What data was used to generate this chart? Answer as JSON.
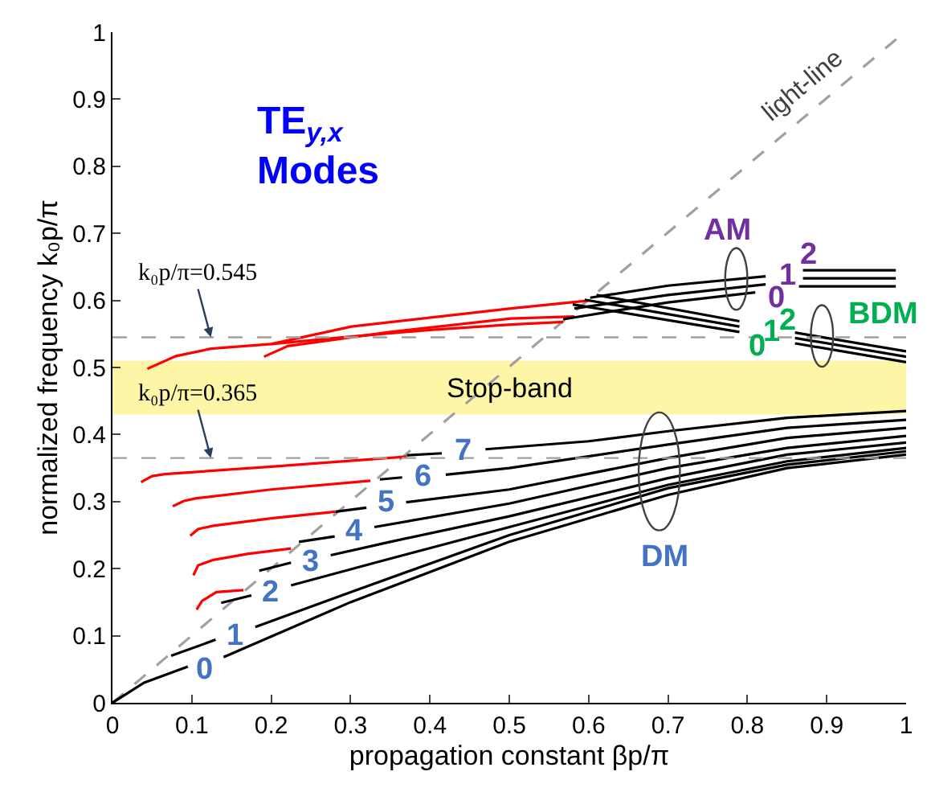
{
  "chart_data": {
    "type": "line",
    "title": "TE$_{y,x}$\nModes",
    "xlabel": "propagation constant βp/π",
    "ylabel": "normalized frequency k₀p/π",
    "xlim": [
      0,
      1
    ],
    "ylim": [
      0,
      1
    ],
    "xticks": [
      0,
      0.1,
      0.2,
      0.3,
      0.4,
      0.5,
      0.6,
      0.7,
      0.8,
      0.9,
      1
    ],
    "yticks": [
      0,
      0.1,
      0.2,
      0.3,
      0.4,
      0.5,
      0.6,
      0.7,
      0.8,
      0.9,
      1
    ],
    "grid": false,
    "marker": "none",
    "series": [
      {
        "color": "#a0a0a0",
        "line_style": "dashed",
        "x": [
          0,
          0.998
        ],
        "values": [
          0,
          1
        ]
      },
      {
        "color": "#000000",
        "x": [
          0,
          0.04,
          0.095,
          null,
          0.14,
          0.3,
          0.5,
          0.7,
          0.85,
          1
        ],
        "values": [
          0,
          0.03,
          0.054,
          null,
          0.068,
          0.15,
          0.24,
          0.31,
          0.35,
          0.37
        ]
      },
      {
        "color": "#000000",
        "x": [
          0.074,
          0.13,
          null,
          0.18,
          0.3,
          0.5,
          0.7,
          0.85,
          1
        ],
        "values": [
          0.07,
          0.094,
          null,
          0.113,
          0.165,
          0.25,
          0.32,
          0.355,
          0.375
        ]
      },
      {
        "color": "#000000",
        "x": [
          0.137,
          0.175,
          null,
          0.225,
          0.35,
          0.5,
          0.7,
          0.85,
          1
        ],
        "values": [
          0.149,
          0.16,
          null,
          0.175,
          0.215,
          0.262,
          0.325,
          0.36,
          0.38
        ]
      },
      {
        "color": "#000000",
        "x": [
          0.185,
          0.225,
          null,
          0.275,
          0.35,
          0.5,
          0.7,
          0.85,
          1
        ],
        "values": [
          0.197,
          0.209,
          null,
          0.22,
          0.24,
          0.278,
          0.335,
          0.37,
          0.388
        ]
      },
      {
        "color": "#000000",
        "x": [
          0.235,
          0.28,
          null,
          0.33,
          0.5,
          0.7,
          0.85,
          1
        ],
        "values": [
          0.24,
          0.248,
          null,
          0.262,
          0.297,
          0.35,
          0.38,
          0.398
        ]
      },
      {
        "color": "#000000",
        "x": [
          0.281,
          0.32,
          null,
          0.37,
          0.5,
          0.7,
          0.85,
          1
        ],
        "values": [
          0.285,
          0.291,
          null,
          0.299,
          0.318,
          0.365,
          0.395,
          0.41
        ]
      },
      {
        "color": "#000000",
        "x": [
          0.337,
          0.365,
          null,
          0.42,
          0.5,
          0.7,
          0.85,
          1
        ],
        "values": [
          0.333,
          0.336,
          null,
          0.34,
          0.35,
          0.385,
          0.41,
          0.422
        ]
      },
      {
        "color": "#000000",
        "x": [
          0.371,
          0.415,
          null,
          0.47,
          0.6,
          0.7,
          0.85,
          1
        ],
        "values": [
          0.369,
          0.372,
          null,
          0.378,
          0.39,
          0.405,
          0.425,
          0.435
        ]
      },
      {
        "color": "#ff0000",
        "x": [
          0.036,
          0.05,
          0.066,
          0.2,
          0.371
        ],
        "values": [
          0.329,
          0.338,
          0.341,
          0.352,
          0.367
        ]
      },
      {
        "color": "#ff0000",
        "x": [
          0.076,
          0.09,
          0.106,
          0.2,
          0.325
        ],
        "values": [
          0.293,
          0.301,
          0.305,
          0.318,
          0.331
        ]
      },
      {
        "color": "#ff0000",
        "x": [
          0.098,
          0.108,
          0.127,
          0.2,
          0.281
        ],
        "values": [
          0.249,
          0.259,
          0.264,
          0.275,
          0.285
        ]
      },
      {
        "color": "#ff0000",
        "x": [
          0.102,
          0.108,
          0.127,
          0.17,
          0.225
        ],
        "values": [
          0.19,
          0.205,
          0.213,
          0.222,
          0.23
        ]
      },
      {
        "color": "#ff0000",
        "x": [
          0.106,
          0.113,
          0.131,
          0.165
        ],
        "values": [
          0.139,
          0.152,
          0.165,
          0.168
        ]
      },
      {
        "color": "#ff0000",
        "x": [
          0.044,
          0.08,
          0.124,
          0.2,
          0.301,
          0.502,
          0.602
        ],
        "values": [
          0.498,
          0.517,
          0.528,
          0.535,
          0.561,
          0.588,
          0.6
        ]
      },
      {
        "color": "#ff0000",
        "x": [
          0.2,
          0.3,
          0.4,
          0.502,
          0.568
        ],
        "values": [
          0.535,
          0.546,
          0.556,
          0.564,
          0.568
        ]
      },
      {
        "color": "#ff0000",
        "x": [
          0.191,
          0.221,
          0.35,
          0.502,
          0.582
        ],
        "values": [
          0.516,
          0.532,
          0.553,
          0.573,
          0.576
        ]
      },
      {
        "color": "#000000",
        "x": [
          0.602,
          0.7,
          0.823,
          null,
          0.87,
          0.987
        ],
        "values": [
          0.604,
          0.622,
          0.636,
          null,
          0.645,
          0.645
        ]
      },
      {
        "color": "#000000",
        "x": [
          0.582,
          0.7,
          0.823,
          null,
          0.87,
          0.987
        ],
        "values": [
          0.588,
          0.608,
          0.624,
          null,
          0.633,
          0.633
        ]
      },
      {
        "color": "#000000",
        "x": [
          0.568,
          0.7,
          0.81,
          null,
          0.865,
          0.987
        ],
        "values": [
          0.572,
          0.597,
          0.612,
          null,
          0.621,
          0.621
        ]
      },
      {
        "color": "#000000",
        "x": [
          0.58,
          0.79,
          null,
          0.86,
          1
        ],
        "values": [
          0.594,
          0.553,
          null,
          0.536,
          0.508
        ]
      },
      {
        "color": "#000000",
        "x": [
          0.595,
          0.79,
          null,
          0.86,
          1
        ],
        "values": [
          0.601,
          0.561,
          null,
          0.544,
          0.516
        ]
      },
      {
        "color": "#000000",
        "x": [
          0.61,
          0.79,
          null,
          0.86,
          1
        ],
        "values": [
          0.608,
          0.569,
          null,
          0.552,
          0.524
        ]
      }
    ],
    "ref_lines": [
      {
        "axis": "y",
        "value": 0.545,
        "label": "k₀p/π=0.545",
        "color": "#a0a0a0",
        "line_style": "dashed"
      },
      {
        "axis": "y",
        "value": 0.365,
        "label": "k₀p/π=0.365",
        "color": "#a0a0a0",
        "line_style": "dashed"
      }
    ],
    "bands": [
      {
        "axis": "y",
        "from": 0.43,
        "to": 0.51,
        "label": "Stop-band",
        "color": "#fdf6a6"
      }
    ],
    "annotations": [
      "0",
      "1",
      "2",
      "3",
      "4",
      "5",
      "6",
      "7",
      "DM",
      "AM",
      "0",
      "1",
      "2",
      "BDM",
      "0",
      "1",
      "2",
      "light-line"
    ]
  }
}
